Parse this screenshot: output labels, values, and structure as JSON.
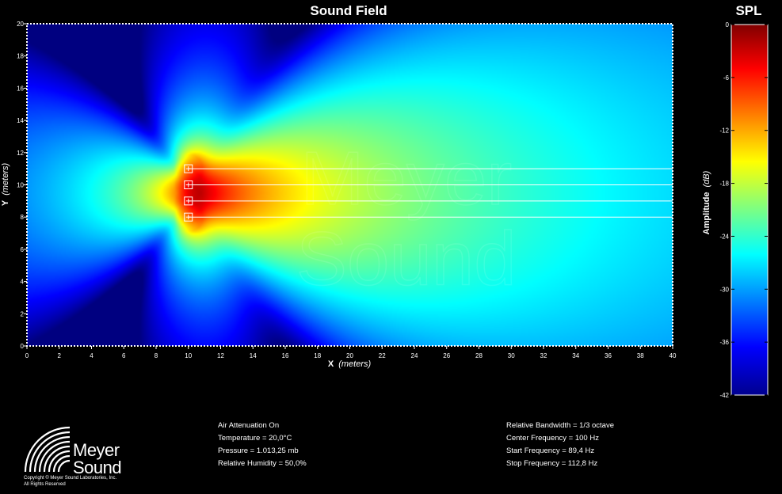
{
  "title": "Sound Field",
  "colorbar": {
    "title": "SPL",
    "label": "Amplitude (dB)",
    "label_main": "Amplitude",
    "label_unit": "(dB)",
    "ticks": [
      "0",
      "-6",
      "-12",
      "-18",
      "-24",
      "-30",
      "-36",
      "-42"
    ]
  },
  "chart_data": {
    "type": "heatmap",
    "title": "Sound Field",
    "xlabel": "X (meters)",
    "xlabel_main": "X",
    "xlabel_unit": "(meters)",
    "ylabel": "Y (meters)",
    "ylabel_main": "Y",
    "ylabel_unit": "(meters)",
    "xlim": [
      0,
      40
    ],
    "ylim": [
      0,
      20
    ],
    "x_ticks": [
      "0",
      "2",
      "4",
      "6",
      "8",
      "10",
      "12",
      "14",
      "16",
      "18",
      "20",
      "22",
      "24",
      "26",
      "28",
      "30",
      "32",
      "34",
      "36",
      "38",
      "40"
    ],
    "y_ticks": [
      "0",
      "2",
      "4",
      "6",
      "8",
      "10",
      "12",
      "14",
      "16",
      "18",
      "20"
    ],
    "zlim_db": [
      -42,
      0
    ],
    "colormap": "jet",
    "sources": [
      {
        "x": 10,
        "y": 11
      },
      {
        "x": 10,
        "y": 10
      },
      {
        "x": 10,
        "y": 9
      },
      {
        "x": 10,
        "y": 8
      }
    ],
    "watermark": [
      "Meyer",
      "Sound"
    ]
  },
  "params_left": [
    "Air Attenuation On",
    "Temperature = 20,0°C",
    "Pressure = 1.013,25  mb",
    "Relative Humidity = 50,0%"
  ],
  "params_right": [
    "Relative Bandwidth = 1/3 octave",
    "Center Frequency = 100 Hz",
    "Start Frequency = 89,4 Hz",
    "Stop Frequency = 112,8 Hz"
  ],
  "logo": {
    "name_line1": "Meyer",
    "name_line2": "Sound",
    "copyright_line1": "Copyright © Meyer Sound Laboratories, Inc.",
    "copyright_line2": "All Rights Reserved"
  }
}
